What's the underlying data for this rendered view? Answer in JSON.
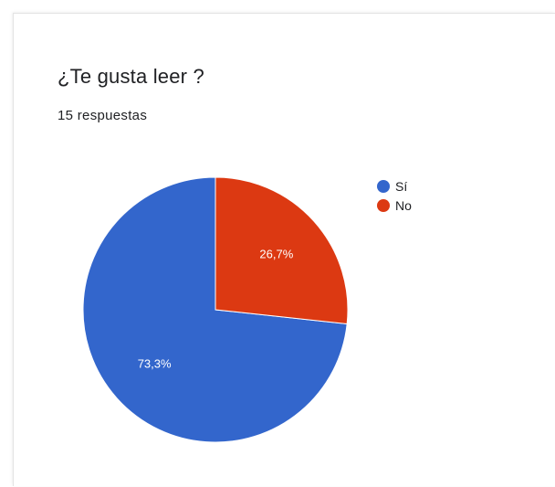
{
  "form": {
    "question": "¿Te gusta leer ?",
    "responses": "15 respuestas"
  },
  "chart_data": {
    "type": "pie",
    "title": "¿Te gusta leer ?",
    "subtitle": "15 respuestas",
    "legend_position": "right",
    "slices": [
      {
        "label": "Sí",
        "value": 73.3,
        "display": "73,3%",
        "color": "#3366cc"
      },
      {
        "label": "No",
        "value": 26.7,
        "display": "26,7%",
        "color": "#dc3912"
      }
    ]
  }
}
